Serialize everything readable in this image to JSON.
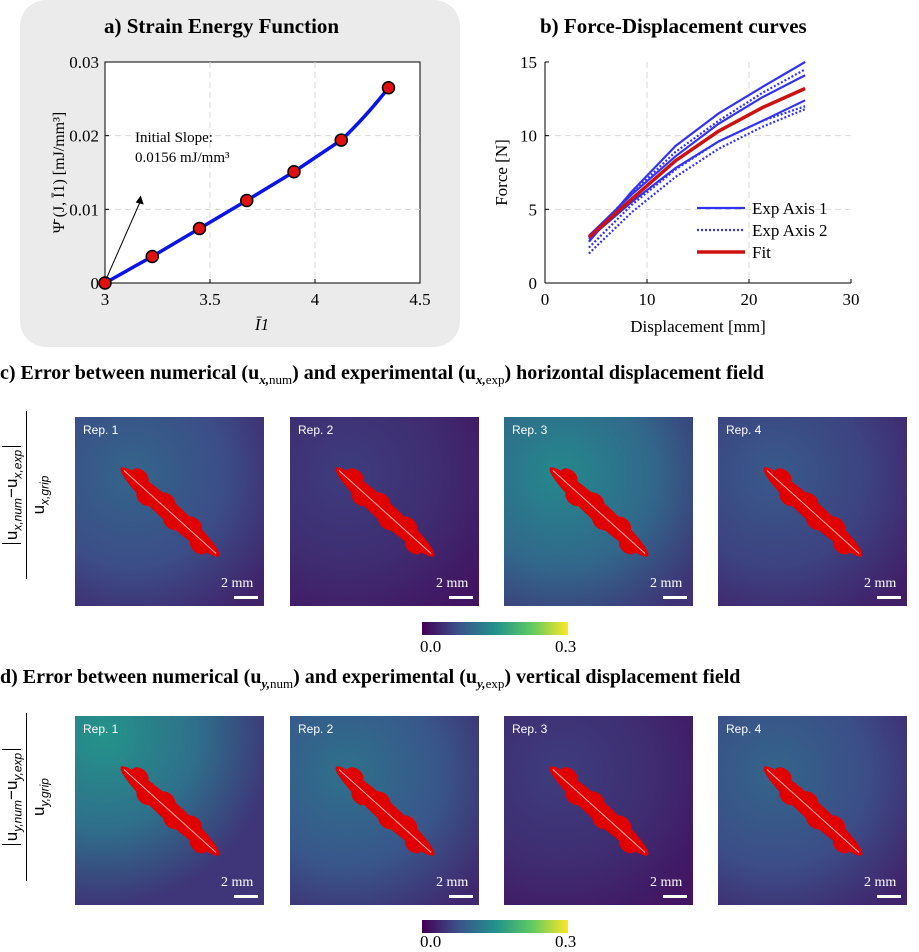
{
  "chart_data": [
    {
      "type": "line",
      "title": "a) Strain Energy Function",
      "xlabel": "Ī1",
      "ylabel": "Ψ̄ (J, Ī1) [mJ/mm³]",
      "xlim": [
        3,
        4.5
      ],
      "ylim": [
        0,
        0.03
      ],
      "xticks": [
        "3",
        "3.5",
        "4",
        "4.5"
      ],
      "yticks": [
        "0",
        "0.01",
        "0.02",
        "0.03"
      ],
      "points": [
        [
          3.0,
          0.0
        ],
        [
          3.225,
          0.0036
        ],
        [
          3.45,
          0.0074
        ],
        [
          3.675,
          0.0112
        ],
        [
          3.9,
          0.0151
        ],
        [
          4.125,
          0.0194
        ],
        [
          4.35,
          0.0265
        ]
      ],
      "annotation": {
        "line1": "Initial Slope:",
        "line2": "0.0156 mJ/mm³"
      },
      "colors": {
        "curve": "#0a14e6",
        "marker": "#e01010",
        "bg": "#ebebeb"
      }
    },
    {
      "type": "line",
      "title": "b) Force-Displacement curves",
      "xlabel": "Displacement [mm]",
      "ylabel": "Force [N]",
      "xlim": [
        0,
        30
      ],
      "ylim": [
        0,
        15
      ],
      "xticks": [
        "0",
        "10",
        "20",
        "30"
      ],
      "yticks": [
        "0",
        "5",
        "10",
        "15"
      ],
      "legend": [
        "Exp Axis 1",
        "Exp Axis 2",
        "Fit"
      ],
      "legend_position": "bottom-right",
      "series": [
        {
          "name": "Exp Axis 1",
          "style": "solid",
          "x": [
            4.3,
            8.5,
            12.8,
            17.0,
            21.3,
            25.5
          ],
          "y": [
            2.8,
            6.2,
            9.3,
            11.5,
            13.3,
            15.0
          ]
        },
        {
          "name": "Exp Axis 1",
          "style": "solid",
          "x": [
            4.3,
            8.5,
            12.8,
            17.0,
            21.3,
            25.5
          ],
          "y": [
            3.2,
            6.0,
            8.6,
            10.8,
            12.6,
            14.1
          ]
        },
        {
          "name": "Exp Axis 1",
          "style": "solid",
          "x": [
            4.3,
            8.5,
            12.8,
            17.0,
            21.3,
            25.5
          ],
          "y": [
            3.0,
            5.5,
            7.8,
            9.6,
            11.0,
            12.4
          ]
        },
        {
          "name": "Exp Axis 2",
          "style": "dotted",
          "x": [
            4.3,
            8.5,
            12.8,
            17.0,
            21.3,
            25.5
          ],
          "y": [
            2.0,
            4.8,
            7.2,
            9.1,
            10.6,
            11.8
          ]
        },
        {
          "name": "Exp Axis 2",
          "style": "dotted",
          "x": [
            4.3,
            8.5,
            12.8,
            17.0,
            21.3,
            25.5
          ],
          "y": [
            2.4,
            5.3,
            7.7,
            9.6,
            11.0,
            12.0
          ]
        },
        {
          "name": "Exp Axis 2",
          "style": "dotted",
          "x": [
            4.3,
            8.5,
            12.8,
            17.0,
            21.3,
            25.5
          ],
          "y": [
            3.1,
            6.1,
            8.9,
            11.0,
            12.9,
            14.5
          ]
        },
        {
          "name": "Fit",
          "style": "solid-thick",
          "x": [
            4.3,
            8.5,
            12.8,
            17.0,
            21.3,
            25.5
          ],
          "y": [
            3.1,
            5.7,
            8.3,
            10.3,
            11.9,
            13.2
          ]
        }
      ],
      "colors": {
        "exp": "#3333ee",
        "fit": "#cc1111"
      }
    },
    {
      "type": "heatmap",
      "title": "c) Error between numerical (ux,num) and experimental (ux,exp) horizontal displacement field",
      "ylabel": "|ux,num − ux,exp| / ux,grip",
      "panels": [
        "Rep. 1",
        "Rep. 2",
        "Rep. 3",
        "Rep. 4"
      ],
      "panel_mean_error": [
        0.07,
        0.04,
        0.1,
        0.06
      ],
      "scale_bar": "2 mm",
      "colorbar": {
        "min": "0.0",
        "max": "0.3"
      }
    },
    {
      "type": "heatmap",
      "title": "d) Error between numerical (uy,num) and experimental (uy,exp) vertical displacement field",
      "ylabel": "|uy,num − uy,exp| / uy,grip",
      "panels": [
        "Rep. 1",
        "Rep. 2",
        "Rep. 3",
        "Rep. 4"
      ],
      "panel_mean_error": [
        0.11,
        0.08,
        0.04,
        0.07
      ],
      "scale_bar": "2 mm",
      "colorbar": {
        "min": "0.0",
        "max": "0.3"
      }
    }
  ],
  "section_c": {
    "prefix": "c) Error between numerical (u",
    "sub1": "x,",
    "sub1b": "num",
    "mid": ") and experimental (u",
    "sub2": "x,",
    "sub2b": "exp",
    "suffix": ") horizontal displacement field",
    "frac_num": "u",
    "frac_num_sub": "x,num",
    "frac_minus": "−",
    "frac_num2": "u",
    "frac_num2_sub": "x,exp",
    "frac_den": "u",
    "frac_den_sub": "x,grip"
  },
  "section_d": {
    "prefix": "d) Error between numerical (u",
    "sub1": "y,",
    "sub1b": "num",
    "mid": ") and experimental (u",
    "sub2": "y,",
    "sub2b": "exp",
    "suffix": ") vertical displacement field",
    "frac_num": "u",
    "frac_num_sub": "y,num",
    "frac_minus": "−",
    "frac_num2": "u",
    "frac_num2_sub": "y,exp",
    "frac_den": "u",
    "frac_den_sub": "y,grip"
  },
  "colormap": [
    "#440154",
    "#3b528b",
    "#21918c",
    "#5ec962",
    "#fde725"
  ]
}
